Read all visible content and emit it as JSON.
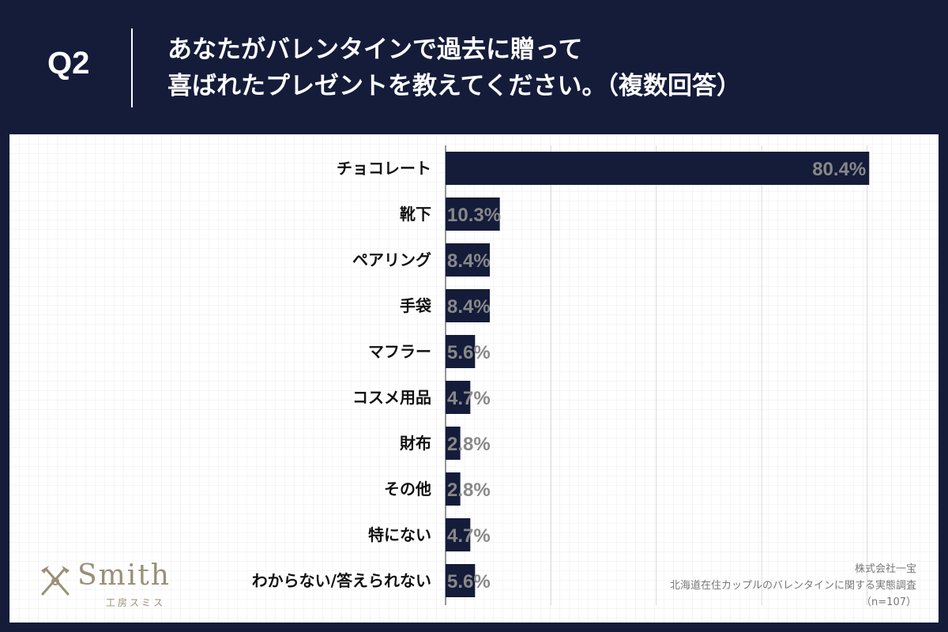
{
  "header": {
    "question_label": "Q2",
    "title_line1": "あなたがバレンタインで過去に贈って",
    "title_line2": "喜ばれたプレゼントを教えてください。（複数回答）"
  },
  "colors": {
    "background": "#141c3a",
    "bar": "#141c3a",
    "value_label": "#888888",
    "grid": "#d8d8d8"
  },
  "chart_data": {
    "type": "bar",
    "orientation": "horizontal",
    "categories": [
      "チョコレート",
      "靴下",
      "ペアリング",
      "手袋",
      "マフラー",
      "コスメ用品",
      "財布",
      "その他",
      "特にない",
      "わからない/答えられない"
    ],
    "values": [
      80.4,
      10.3,
      8.4,
      8.4,
      5.6,
      4.7,
      2.8,
      2.8,
      4.7,
      5.6
    ],
    "value_labels": [
      "80.4%",
      "10.3%",
      "8.4%",
      "8.4%",
      "5.6%",
      "4.7%",
      "2.8%",
      "2.8%",
      "4.7%",
      "5.6%"
    ],
    "unit": "%",
    "xlim": [
      0,
      100
    ],
    "grid": true,
    "title": "",
    "xlabel": "",
    "ylabel": ""
  },
  "logo": {
    "name": "Smith",
    "subtitle": "工房スミス",
    "icon": "crossed-tools-icon"
  },
  "source": {
    "line1": "株式会社一宝",
    "line2": "北海道在住カップルのバレンタインに関する実態調査",
    "line3": "（n=107）"
  }
}
